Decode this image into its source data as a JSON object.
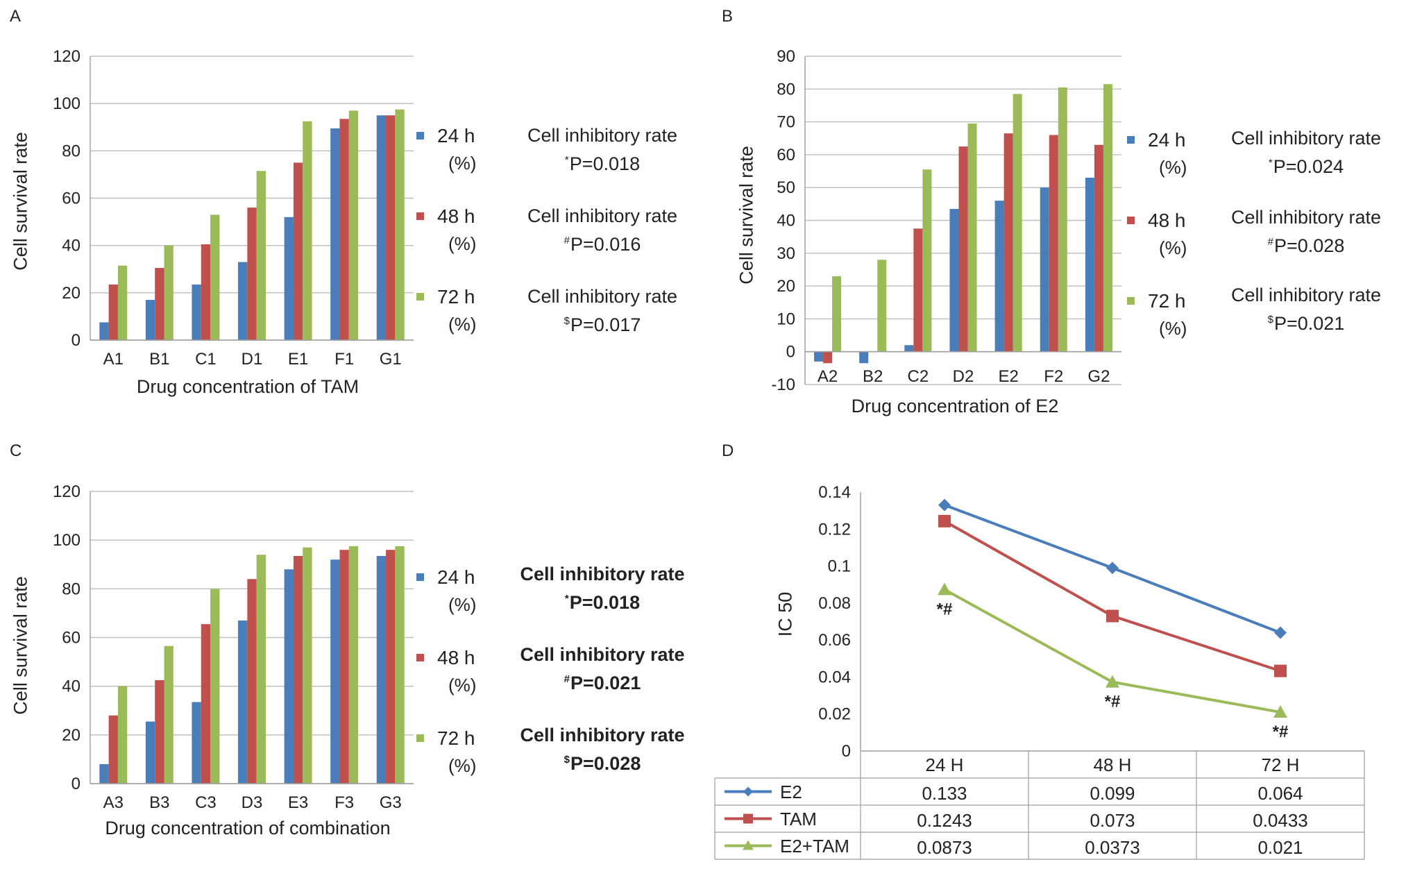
{
  "panels": {
    "a": {
      "letter": "A"
    },
    "b": {
      "letter": "B"
    },
    "c": {
      "letter": "C"
    },
    "d": {
      "letter": "D"
    }
  },
  "series_colors": {
    "24 h": "#4a7ebb",
    "48 h": "#c0504d",
    "72 h": "#9bbb59"
  },
  "legend_unit": "(%)",
  "stats": {
    "a": [
      {
        "title": "Cell inhibitory rate",
        "symbol": "*",
        "p": "P=0.018"
      },
      {
        "title": "Cell inhibitory rate",
        "symbol": "#",
        "p": "P=0.016"
      },
      {
        "title": "Cell inhibitory rate",
        "symbol": "$",
        "p": "P=0.017"
      }
    ],
    "b": [
      {
        "title": "Cell inhibitory rate",
        "symbol": "*",
        "p": "P=0.024"
      },
      {
        "title": "Cell inhibitory rate",
        "symbol": "#",
        "p": "P=0.028"
      },
      {
        "title": "Cell inhibitory rate",
        "symbol": "$",
        "p": "P=0.021"
      }
    ],
    "c": [
      {
        "title": "Cell inhibitory rate",
        "symbol": "*",
        "p": "P=0.018"
      },
      {
        "title": "Cell inhibitory rate",
        "symbol": "#",
        "p": "P=0.021"
      },
      {
        "title": "Cell inhibitory rate",
        "symbol": "$",
        "p": "P=0.028"
      }
    ]
  },
  "chart_data": [
    {
      "id": "a",
      "type": "bar",
      "title": "",
      "xlabel": "Drug concentration of TAM",
      "ylabel": "Cell survival rate",
      "ylim": [
        0,
        120
      ],
      "yticks": [
        0,
        20,
        40,
        60,
        80,
        100,
        120
      ],
      "grid": true,
      "legend_position": "right",
      "categories": [
        "A1",
        "B1",
        "C1",
        "D1",
        "E1",
        "F1",
        "G1"
      ],
      "series": [
        {
          "name": "24 h",
          "values": [
            7.5,
            17,
            23.5,
            33,
            52,
            89.5,
            95
          ]
        },
        {
          "name": "48 h",
          "values": [
            23.5,
            30.5,
            40.5,
            56,
            75,
            93.5,
            95
          ]
        },
        {
          "name": "72 h",
          "values": [
            31.5,
            40,
            53,
            71.5,
            92.5,
            97,
            97.5
          ]
        }
      ]
    },
    {
      "id": "b",
      "type": "bar",
      "title": "",
      "xlabel": "Drug concentration of E2",
      "ylabel": "Cell survival rate",
      "ylim": [
        -10,
        90
      ],
      "yticks": [
        -10,
        0,
        10,
        20,
        30,
        40,
        50,
        60,
        70,
        80,
        90
      ],
      "grid": true,
      "legend_position": "right",
      "categories": [
        "A2",
        "B2",
        "C2",
        "D2",
        "E2",
        "F2",
        "G2"
      ],
      "series": [
        {
          "name": "24 h",
          "values": [
            -3,
            -3.5,
            2,
            43.5,
            46,
            50,
            53
          ]
        },
        {
          "name": "48 h",
          "values": [
            -3.5,
            0,
            37.5,
            62.5,
            66.5,
            66,
            63
          ]
        },
        {
          "name": "72 h",
          "values": [
            23,
            28,
            55.5,
            69.5,
            78.5,
            80.5,
            81.5
          ]
        }
      ]
    },
    {
      "id": "c",
      "type": "bar",
      "title": "",
      "xlabel": "Drug concentration of combination",
      "ylabel": "Cell survival rate",
      "ylim": [
        0,
        120
      ],
      "yticks": [
        0,
        20,
        40,
        60,
        80,
        100,
        120
      ],
      "grid": true,
      "legend_position": "right",
      "categories": [
        "A3",
        "B3",
        "C3",
        "D3",
        "E3",
        "F3",
        "G3"
      ],
      "series": [
        {
          "name": "24 h",
          "values": [
            8,
            25.5,
            33.5,
            67,
            88,
            92,
            93.5
          ]
        },
        {
          "name": "48 h",
          "values": [
            28,
            42.5,
            65.5,
            84,
            93.5,
            96,
            96
          ]
        },
        {
          "name": "72 h",
          "values": [
            40,
            56.5,
            80,
            94,
            97,
            97.5,
            97.5
          ]
        }
      ]
    },
    {
      "id": "d",
      "type": "line",
      "title": "",
      "xlabel": "",
      "ylabel": "IC 50",
      "ylim": [
        0,
        0.14
      ],
      "yticks": [
        "0",
        "0.02",
        "0.04",
        "0.06",
        "0.08",
        "0.1",
        "0.12",
        "0.14"
      ],
      "grid": false,
      "legend_position": "data table below",
      "categories": [
        "24 H",
        "48 H",
        "72 H"
      ],
      "series": [
        {
          "name": "E2",
          "color": "#4a7ebb",
          "marker": "diamond",
          "values": [
            0.133,
            0.099,
            0.064
          ],
          "labels": [
            "0.133",
            "0.099",
            "0.064"
          ]
        },
        {
          "name": "TAM",
          "color": "#c0504d",
          "marker": "square",
          "values": [
            0.1243,
            0.073,
            0.0433
          ],
          "labels": [
            "0.1243",
            "0.073",
            "0.0433"
          ]
        },
        {
          "name": "E2+TAM",
          "color": "#9bbb59",
          "marker": "triangle",
          "values": [
            0.0873,
            0.0373,
            0.021
          ],
          "labels": [
            "0.0873",
            "0.0373",
            "0.021"
          ]
        }
      ],
      "annotations": [
        "*#",
        "*#",
        "*#"
      ]
    }
  ]
}
